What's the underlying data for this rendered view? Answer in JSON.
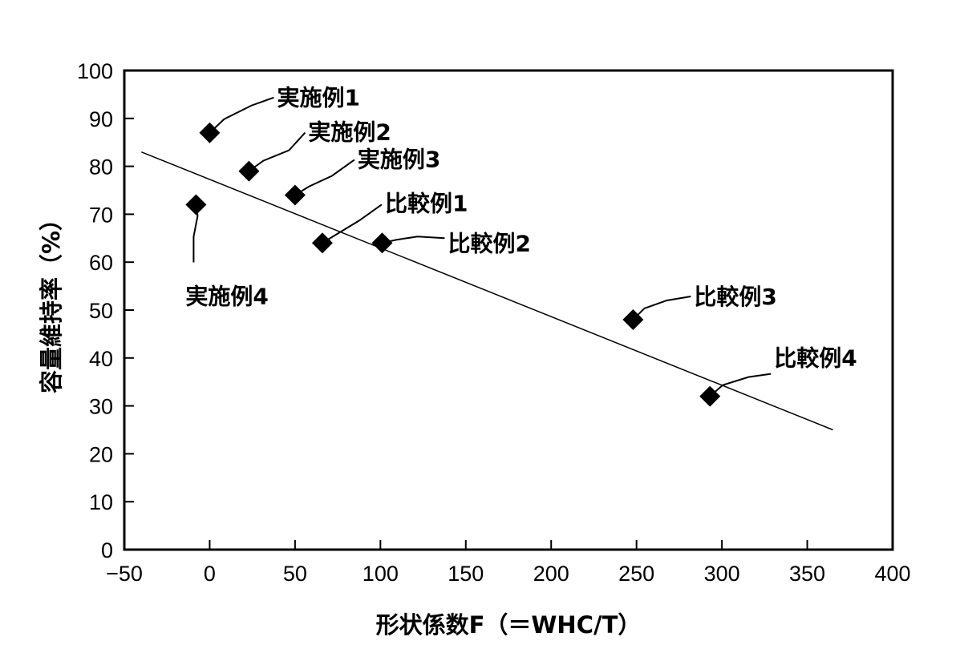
{
  "chart_data": {
    "type": "scatter",
    "title": "",
    "xlabel": "形状係数F（＝WHC/T）",
    "ylabel": "容量維持率（%）",
    "xlim": [
      -50,
      400
    ],
    "ylim": [
      0,
      100
    ],
    "xticks": [
      -50,
      0,
      50,
      100,
      150,
      200,
      250,
      300,
      350,
      400
    ],
    "yticks": [
      0,
      10,
      20,
      30,
      40,
      50,
      60,
      70,
      80,
      90,
      100
    ],
    "xtick_labels": [
      "−50",
      "0",
      "50",
      "100",
      "150",
      "200",
      "250",
      "300",
      "350",
      "400"
    ],
    "ytick_labels": [
      "0",
      "10",
      "20",
      "30",
      "40",
      "50",
      "60",
      "70",
      "80",
      "90",
      "100"
    ],
    "points": [
      {
        "label": "実施例1",
        "x": 0,
        "y": 87
      },
      {
        "label": "実施例2",
        "x": 23,
        "y": 79
      },
      {
        "label": "実施例3",
        "x": 50,
        "y": 74
      },
      {
        "label": "実施例4",
        "x": -8,
        "y": 72
      },
      {
        "label": "比較例1",
        "x": 66,
        "y": 64
      },
      {
        "label": "比較例2",
        "x": 101,
        "y": 64
      },
      {
        "label": "比較例3",
        "x": 248,
        "y": 48
      },
      {
        "label": "比較例4",
        "x": 293,
        "y": 32
      }
    ],
    "trendline": {
      "x": [
        -40,
        365
      ],
      "y": [
        83,
        25
      ]
    }
  }
}
